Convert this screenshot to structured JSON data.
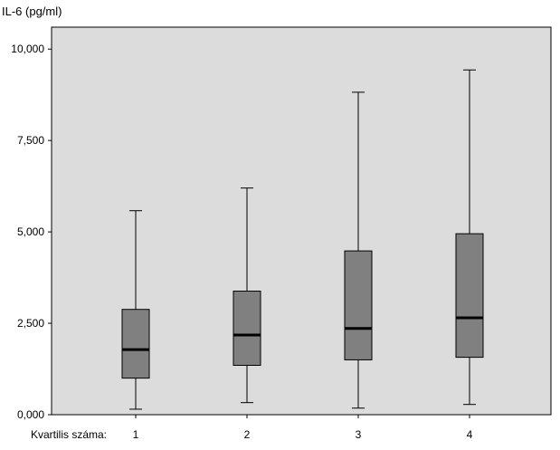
{
  "chart_data": {
    "type": "boxplot",
    "ylabel": "IL-6 (pg/ml)",
    "xlabel": "Kvartilis száma:",
    "categories": [
      "1",
      "2",
      "3",
      "4"
    ],
    "ylim": [
      0,
      10.6
    ],
    "yticks": [
      {
        "value": 0,
        "label": "0,000"
      },
      {
        "value": 2.5,
        "label": "2,500"
      },
      {
        "value": 5.0,
        "label": "5,000"
      },
      {
        "value": 7.5,
        "label": "7,500"
      },
      {
        "value": 10.0,
        "label": "10,000"
      }
    ],
    "boxes": [
      {
        "category": "1",
        "min": 0.15,
        "q1": 1.0,
        "median": 1.78,
        "q3": 2.88,
        "max": 5.58
      },
      {
        "category": "2",
        "min": 0.33,
        "q1": 1.35,
        "median": 2.18,
        "q3": 3.38,
        "max": 6.2
      },
      {
        "category": "3",
        "min": 0.18,
        "q1": 1.5,
        "median": 2.36,
        "q3": 4.48,
        "max": 8.82
      },
      {
        "category": "4",
        "min": 0.28,
        "q1": 1.57,
        "median": 2.65,
        "q3": 4.95,
        "max": 9.43
      }
    ],
    "grid": false,
    "colors": {
      "plot_background": "#dcdcdc",
      "box_fill": "#808080",
      "median": "#000000",
      "whisker": "#000000"
    }
  }
}
